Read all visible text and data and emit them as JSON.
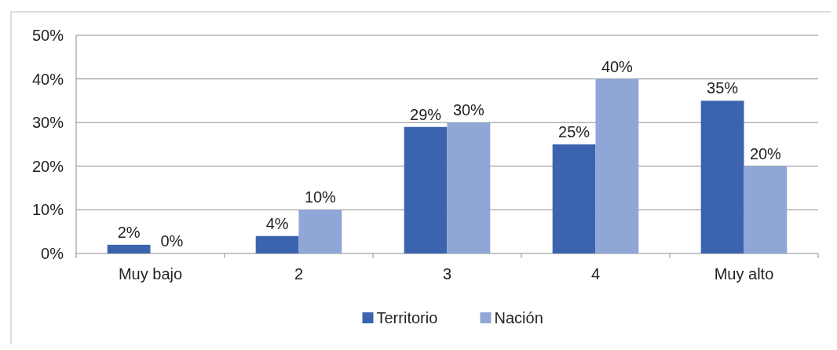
{
  "chart_data": {
    "type": "bar",
    "categories": [
      "Muy bajo",
      "2",
      "3",
      "4",
      "Muy alto"
    ],
    "series": [
      {
        "name": "Territorio",
        "color": "#3c64ae",
        "values": [
          2,
          4,
          29,
          25,
          35
        ],
        "value_labels": [
          "2%",
          "4%",
          "29%",
          "25%",
          "35%"
        ]
      },
      {
        "name": "Nación",
        "color": "#8fa6d6",
        "values": [
          0,
          10,
          30,
          40,
          20
        ],
        "value_labels": [
          "0%",
          "10%",
          "30%",
          "40%",
          "20%"
        ]
      }
    ],
    "ylim": [
      0,
      50
    ],
    "yticks": [
      {
        "value": 0,
        "label": "0%"
      },
      {
        "value": 10,
        "label": "10%"
      },
      {
        "value": 20,
        "label": "20%"
      },
      {
        "value": 30,
        "label": "30%"
      },
      {
        "value": 40,
        "label": "40%"
      },
      {
        "value": 50,
        "label": "50%"
      }
    ],
    "grid": "y",
    "legend": "bottom"
  }
}
